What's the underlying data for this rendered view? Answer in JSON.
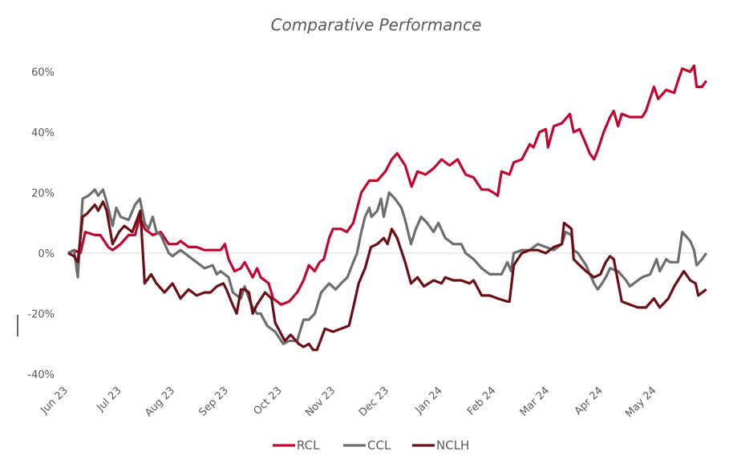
{
  "chart_data": {
    "type": "line",
    "title": "Comparative Performance",
    "xlabel": "",
    "ylabel": "",
    "x_unit": "months since Jun 23",
    "x_ticks": [
      "Jun 23",
      "Jul 23",
      "Aug 23",
      "Sep 23",
      "Oct 23",
      "Nov 23",
      "Dec 23",
      "Jan 24",
      "Feb 24",
      "Mar 24",
      "Apr 24",
      "May 24"
    ],
    "y_ticks": [
      "60%",
      "40%",
      "20%",
      "0%",
      "-20%",
      "-40%"
    ],
    "y_tick_values": [
      60,
      40,
      20,
      0,
      -20,
      -40
    ],
    "ylim": [
      -40,
      60
    ],
    "xlim": [
      0,
      12
    ],
    "grid": "zero-line only",
    "legend_position": "bottom",
    "series": [
      {
        "name": "RCL",
        "color": "#c0062f",
        "points": [
          [
            0,
            0
          ],
          [
            0.11,
            1
          ],
          [
            0.23,
            0
          ],
          [
            0.32,
            7
          ],
          [
            0.5,
            6
          ],
          [
            0.6,
            6
          ],
          [
            0.75,
            2
          ],
          [
            0.83,
            1
          ],
          [
            0.98,
            3
          ],
          [
            1.13,
            6
          ],
          [
            1.25,
            6
          ],
          [
            1.34,
            12
          ],
          [
            1.43,
            8
          ],
          [
            1.58,
            6
          ],
          [
            1.73,
            7
          ],
          [
            1.88,
            3
          ],
          [
            2.03,
            3
          ],
          [
            2.1,
            4
          ],
          [
            2.25,
            2
          ],
          [
            2.4,
            2
          ],
          [
            2.55,
            1
          ],
          [
            2.7,
            1
          ],
          [
            2.85,
            1
          ],
          [
            2.93,
            3
          ],
          [
            3.0,
            -2
          ],
          [
            3.11,
            -6
          ],
          [
            3.23,
            -5
          ],
          [
            3.3,
            -3
          ],
          [
            3.45,
            -8
          ],
          [
            3.53,
            -5
          ],
          [
            3.6,
            -8
          ],
          [
            3.75,
            -10
          ],
          [
            3.83,
            -15
          ],
          [
            3.98,
            -17
          ],
          [
            4.13,
            -16
          ],
          [
            4.28,
            -13
          ],
          [
            4.4,
            -9
          ],
          [
            4.5,
            -4
          ],
          [
            4.61,
            -6
          ],
          [
            4.7,
            -3
          ],
          [
            4.78,
            -2
          ],
          [
            4.88,
            5
          ],
          [
            4.95,
            8
          ],
          [
            5.1,
            8
          ],
          [
            5.21,
            7
          ],
          [
            5.33,
            10
          ],
          [
            5.48,
            20
          ],
          [
            5.63,
            24
          ],
          [
            5.78,
            24
          ],
          [
            5.93,
            27
          ],
          [
            6.05,
            31
          ],
          [
            6.15,
            33
          ],
          [
            6.3,
            29
          ],
          [
            6.42,
            22
          ],
          [
            6.53,
            27
          ],
          [
            6.68,
            26
          ],
          [
            6.83,
            28
          ],
          [
            6.98,
            31
          ],
          [
            7.13,
            29
          ],
          [
            7.28,
            31
          ],
          [
            7.43,
            26
          ],
          [
            7.58,
            25
          ],
          [
            7.73,
            21
          ],
          [
            7.85,
            21
          ],
          [
            7.95,
            20
          ],
          [
            8.03,
            19
          ],
          [
            8.1,
            27
          ],
          [
            8.25,
            26
          ],
          [
            8.33,
            30
          ],
          [
            8.48,
            31
          ],
          [
            8.63,
            36
          ],
          [
            8.7,
            35
          ],
          [
            8.81,
            40
          ],
          [
            8.93,
            41
          ],
          [
            8.97,
            35
          ],
          [
            9.08,
            42
          ],
          [
            9.23,
            43
          ],
          [
            9.38,
            46
          ],
          [
            9.45,
            40
          ],
          [
            9.56,
            41
          ],
          [
            9.68,
            36
          ],
          [
            9.75,
            33
          ],
          [
            9.83,
            31
          ],
          [
            9.9,
            34
          ],
          [
            10.01,
            40
          ],
          [
            10.13,
            45
          ],
          [
            10.2,
            47
          ],
          [
            10.28,
            42
          ],
          [
            10.35,
            46
          ],
          [
            10.5,
            45
          ],
          [
            10.73,
            45
          ],
          [
            10.8,
            47
          ],
          [
            10.95,
            55
          ],
          [
            11.03,
            51
          ],
          [
            11.18,
            54
          ],
          [
            11.33,
            53
          ],
          [
            11.4,
            57
          ],
          [
            11.48,
            61
          ],
          [
            11.63,
            60
          ],
          [
            11.7,
            62
          ],
          [
            11.75,
            55
          ],
          [
            11.85,
            55
          ],
          [
            11.93,
            57
          ]
        ]
      },
      {
        "name": "CCL",
        "color": "#6d6e71",
        "points": [
          [
            0,
            0
          ],
          [
            0.11,
            1
          ],
          [
            0.18,
            -8
          ],
          [
            0.27,
            18
          ],
          [
            0.38,
            19
          ],
          [
            0.5,
            21
          ],
          [
            0.56,
            19
          ],
          [
            0.65,
            21
          ],
          [
            0.72,
            17
          ],
          [
            0.83,
            9
          ],
          [
            0.9,
            15
          ],
          [
            0.98,
            12
          ],
          [
            1.13,
            11
          ],
          [
            1.25,
            16
          ],
          [
            1.34,
            18
          ],
          [
            1.43,
            10
          ],
          [
            1.5,
            8
          ],
          [
            1.58,
            12
          ],
          [
            1.65,
            7
          ],
          [
            1.73,
            6
          ],
          [
            1.88,
            0
          ],
          [
            1.95,
            -1
          ],
          [
            2.1,
            1
          ],
          [
            2.25,
            -1
          ],
          [
            2.4,
            -3
          ],
          [
            2.55,
            -5
          ],
          [
            2.7,
            -4
          ],
          [
            2.78,
            -7
          ],
          [
            2.85,
            -6
          ],
          [
            3.0,
            -8
          ],
          [
            3.08,
            -13
          ],
          [
            3.23,
            -15
          ],
          [
            3.3,
            -11
          ],
          [
            3.42,
            -17
          ],
          [
            3.53,
            -20
          ],
          [
            3.6,
            -20
          ],
          [
            3.72,
            -24
          ],
          [
            3.87,
            -26
          ],
          [
            4.02,
            -30
          ],
          [
            4.13,
            -29
          ],
          [
            4.28,
            -29
          ],
          [
            4.4,
            -22
          ],
          [
            4.5,
            -22
          ],
          [
            4.61,
            -20
          ],
          [
            4.73,
            -13
          ],
          [
            4.88,
            -10
          ],
          [
            5.0,
            -12
          ],
          [
            5.1,
            -10
          ],
          [
            5.22,
            -8
          ],
          [
            5.33,
            -3
          ],
          [
            5.4,
            0
          ],
          [
            5.48,
            7
          ],
          [
            5.55,
            12
          ],
          [
            5.63,
            15
          ],
          [
            5.67,
            12
          ],
          [
            5.78,
            14
          ],
          [
            5.85,
            18
          ],
          [
            5.9,
            12
          ],
          [
            6.0,
            20
          ],
          [
            6.11,
            18
          ],
          [
            6.23,
            15
          ],
          [
            6.3,
            11
          ],
          [
            6.41,
            3
          ],
          [
            6.5,
            8
          ],
          [
            6.6,
            12
          ],
          [
            6.71,
            10
          ],
          [
            6.83,
            7
          ],
          [
            6.92,
            10
          ],
          [
            7.05,
            5
          ],
          [
            7.2,
            3
          ],
          [
            7.35,
            3
          ],
          [
            7.43,
            0
          ],
          [
            7.58,
            -2
          ],
          [
            7.73,
            -5
          ],
          [
            7.88,
            -7
          ],
          [
            8.1,
            -7
          ],
          [
            8.21,
            -3
          ],
          [
            8.28,
            -6
          ],
          [
            8.33,
            0
          ],
          [
            8.48,
            1
          ],
          [
            8.63,
            1
          ],
          [
            8.78,
            3
          ],
          [
            8.93,
            2
          ],
          [
            9.08,
            1
          ],
          [
            9.23,
            3
          ],
          [
            9.3,
            7
          ],
          [
            9.41,
            6
          ],
          [
            9.45,
            1
          ],
          [
            9.53,
            0
          ],
          [
            9.68,
            -4
          ],
          [
            9.83,
            -10
          ],
          [
            9.9,
            -12
          ],
          [
            9.98,
            -10
          ],
          [
            10.05,
            -8
          ],
          [
            10.13,
            -5
          ],
          [
            10.28,
            -6
          ],
          [
            10.43,
            -9
          ],
          [
            10.5,
            -11
          ],
          [
            10.73,
            -8
          ],
          [
            10.88,
            -7
          ],
          [
            11.0,
            -2
          ],
          [
            11.06,
            -6
          ],
          [
            11.18,
            -2
          ],
          [
            11.25,
            -3
          ],
          [
            11.4,
            -3
          ],
          [
            11.48,
            7
          ],
          [
            11.63,
            4
          ],
          [
            11.7,
            1
          ],
          [
            11.75,
            -4
          ],
          [
            11.85,
            -2
          ],
          [
            11.93,
            0
          ]
        ]
      },
      {
        "name": "NCLH",
        "color": "#6b0f14",
        "points": [
          [
            0,
            0
          ],
          [
            0.11,
            -1
          ],
          [
            0.18,
            -3
          ],
          [
            0.27,
            12
          ],
          [
            0.35,
            13
          ],
          [
            0.5,
            16
          ],
          [
            0.56,
            14
          ],
          [
            0.65,
            17
          ],
          [
            0.72,
            14
          ],
          [
            0.83,
            3
          ],
          [
            0.95,
            7
          ],
          [
            1.05,
            9
          ],
          [
            1.2,
            7
          ],
          [
            1.35,
            14
          ],
          [
            1.43,
            -10
          ],
          [
            1.55,
            -7
          ],
          [
            1.65,
            -10
          ],
          [
            1.8,
            -13
          ],
          [
            1.95,
            -10
          ],
          [
            2.1,
            -15
          ],
          [
            2.25,
            -12
          ],
          [
            2.4,
            -14
          ],
          [
            2.55,
            -13
          ],
          [
            2.66,
            -13
          ],
          [
            2.78,
            -11
          ],
          [
            2.9,
            -10
          ],
          [
            2.96,
            -12
          ],
          [
            3.05,
            -16
          ],
          [
            3.15,
            -20
          ],
          [
            3.23,
            -12
          ],
          [
            3.3,
            -12
          ],
          [
            3.38,
            -13
          ],
          [
            3.45,
            -20
          ],
          [
            3.53,
            -17
          ],
          [
            3.68,
            -13
          ],
          [
            3.8,
            -15
          ],
          [
            3.87,
            -23
          ],
          [
            4.05,
            -29
          ],
          [
            4.16,
            -27
          ],
          [
            4.31,
            -30
          ],
          [
            4.4,
            -31
          ],
          [
            4.5,
            -30
          ],
          [
            4.58,
            -32
          ],
          [
            4.65,
            -32
          ],
          [
            4.8,
            -25
          ],
          [
            4.95,
            -26
          ],
          [
            5.1,
            -25
          ],
          [
            5.25,
            -24
          ],
          [
            5.33,
            -18
          ],
          [
            5.43,
            -10
          ],
          [
            5.55,
            -5
          ],
          [
            5.66,
            2
          ],
          [
            5.78,
            3
          ],
          [
            5.9,
            5
          ],
          [
            5.97,
            3
          ],
          [
            6.05,
            8
          ],
          [
            6.15,
            5
          ],
          [
            6.3,
            -3
          ],
          [
            6.41,
            -10
          ],
          [
            6.53,
            -8
          ],
          [
            6.65,
            -11
          ],
          [
            6.83,
            -9
          ],
          [
            6.98,
            -10
          ],
          [
            7.05,
            -8
          ],
          [
            7.2,
            -9
          ],
          [
            7.35,
            -9
          ],
          [
            7.5,
            -10
          ],
          [
            7.58,
            -9
          ],
          [
            7.73,
            -14
          ],
          [
            7.88,
            -14
          ],
          [
            8.03,
            -15
          ],
          [
            8.21,
            -16
          ],
          [
            8.25,
            -16
          ],
          [
            8.33,
            -4
          ],
          [
            8.48,
            0
          ],
          [
            8.63,
            1
          ],
          [
            8.78,
            1
          ],
          [
            8.93,
            0
          ],
          [
            9.08,
            2
          ],
          [
            9.23,
            3
          ],
          [
            9.27,
            10
          ],
          [
            9.41,
            8
          ],
          [
            9.45,
            -2
          ],
          [
            9.56,
            -4
          ],
          [
            9.68,
            -6
          ],
          [
            9.83,
            -8
          ],
          [
            9.95,
            -7
          ],
          [
            10.05,
            -3
          ],
          [
            10.13,
            -1
          ],
          [
            10.2,
            -2
          ],
          [
            10.35,
            -16
          ],
          [
            10.5,
            -17
          ],
          [
            10.65,
            -18
          ],
          [
            10.8,
            -18
          ],
          [
            10.95,
            -15
          ],
          [
            11.06,
            -18
          ],
          [
            11.22,
            -15
          ],
          [
            11.33,
            -11
          ],
          [
            11.4,
            -9
          ],
          [
            11.51,
            -6
          ],
          [
            11.63,
            -9
          ],
          [
            11.73,
            -10
          ],
          [
            11.78,
            -14
          ],
          [
            11.93,
            -12
          ]
        ]
      }
    ]
  }
}
